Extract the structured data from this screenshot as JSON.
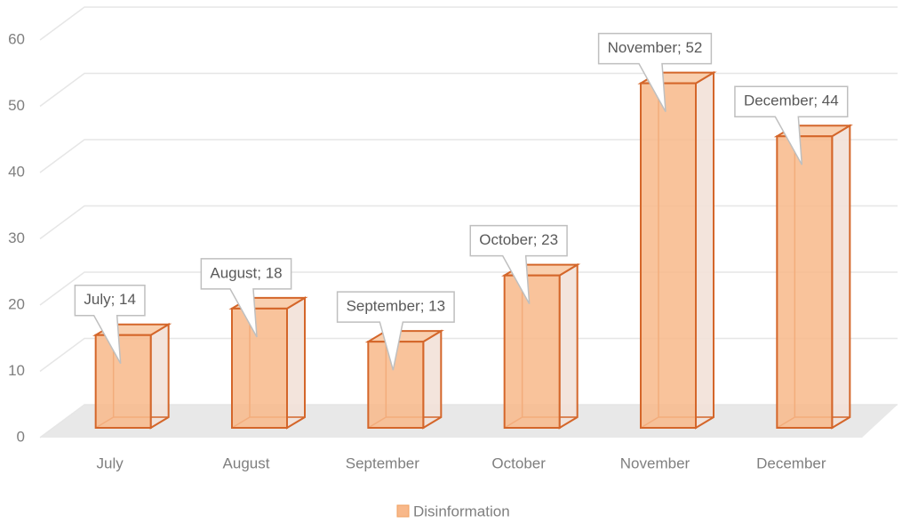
{
  "chart_data": {
    "type": "bar3d",
    "categories": [
      "July",
      "August",
      "September",
      "October",
      "November",
      "December"
    ],
    "series": [
      {
        "name": "Disinformation",
        "color": "#f8b88a",
        "values": [
          14,
          18,
          13,
          23,
          52,
          44
        ],
        "value_labels": [
          "July; 14",
          "August; 18",
          "September; 13",
          "October; 23",
          "November; 52",
          "December; 44"
        ]
      }
    ],
    "ylim": [
      0,
      60
    ],
    "yticks": [
      0,
      10,
      20,
      30,
      40,
      50,
      60
    ],
    "grid": true,
    "legend": "bottom"
  }
}
